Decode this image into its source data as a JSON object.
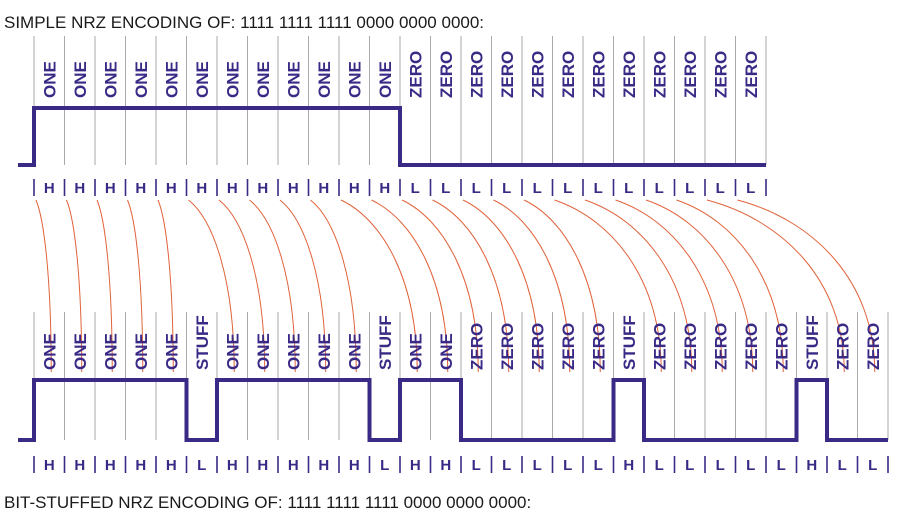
{
  "top": {
    "title": "SIMPLE NRZ ENCODING OF: 1111 1111 1111 0000 0000 0000:",
    "bits": [
      "ONE",
      "ONE",
      "ONE",
      "ONE",
      "ONE",
      "ONE",
      "ONE",
      "ONE",
      "ONE",
      "ONE",
      "ONE",
      "ONE",
      "ZERO",
      "ZERO",
      "ZERO",
      "ZERO",
      "ZERO",
      "ZERO",
      "ZERO",
      "ZERO",
      "ZERO",
      "ZERO",
      "ZERO",
      "ZERO"
    ],
    "levels": [
      "H",
      "H",
      "H",
      "H",
      "H",
      "H",
      "H",
      "H",
      "H",
      "H",
      "H",
      "H",
      "L",
      "L",
      "L",
      "L",
      "L",
      "L",
      "L",
      "L",
      "L",
      "L",
      "L",
      "L"
    ]
  },
  "bottom": {
    "title": "BIT-STUFFED NRZ ENCODING OF: 1111 1111 1111 0000 0000 0000:",
    "bits": [
      "ONE",
      "ONE",
      "ONE",
      "ONE",
      "ONE",
      "STUFF",
      "ONE",
      "ONE",
      "ONE",
      "ONE",
      "ONE",
      "STUFF",
      "ONE",
      "ONE",
      "ZERO",
      "ZERO",
      "ZERO",
      "ZERO",
      "ZERO",
      "STUFF",
      "ZERO",
      "ZERO",
      "ZERO",
      "ZERO",
      "ZERO",
      "STUFF",
      "ZERO",
      "ZERO"
    ],
    "levels": [
      "H",
      "H",
      "H",
      "H",
      "H",
      "L",
      "H",
      "H",
      "H",
      "H",
      "H",
      "L",
      "H",
      "H",
      "L",
      "L",
      "L",
      "L",
      "L",
      "H",
      "L",
      "L",
      "L",
      "L",
      "L",
      "H",
      "L",
      "L"
    ]
  },
  "mapping": [
    [
      0,
      0
    ],
    [
      1,
      1
    ],
    [
      2,
      2
    ],
    [
      3,
      3
    ],
    [
      4,
      4
    ],
    [
      5,
      6
    ],
    [
      6,
      7
    ],
    [
      7,
      8
    ],
    [
      8,
      9
    ],
    [
      9,
      10
    ],
    [
      10,
      12
    ],
    [
      11,
      13
    ],
    [
      12,
      14
    ],
    [
      13,
      15
    ],
    [
      14,
      16
    ],
    [
      15,
      17
    ],
    [
      16,
      18
    ],
    [
      17,
      20
    ],
    [
      18,
      21
    ],
    [
      19,
      22
    ],
    [
      20,
      23
    ],
    [
      21,
      24
    ],
    [
      22,
      26
    ],
    [
      23,
      27
    ]
  ],
  "colors": {
    "signal": "#3a2a86",
    "grid": "#aaaaaa",
    "link": "#e0623a",
    "text": "#1a1a1a"
  }
}
